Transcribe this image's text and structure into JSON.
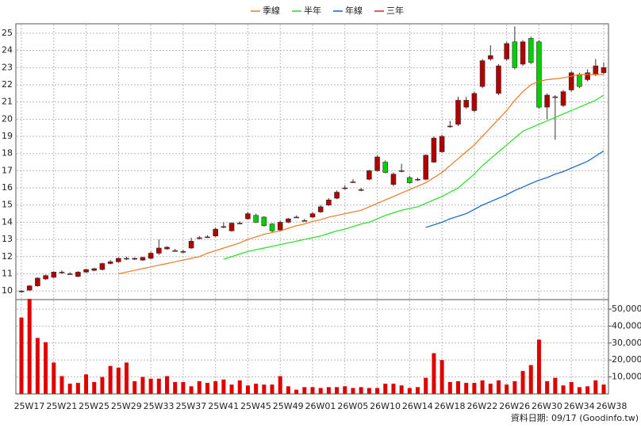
{
  "chart_data": [
    {
      "type": "candlestick",
      "categories": [
        "25W17",
        null,
        null,
        null,
        "25W21",
        null,
        null,
        null,
        "25W25",
        null,
        null,
        null,
        "25W29",
        null,
        null,
        null,
        "25W33",
        null,
        null,
        null,
        "25W37",
        null,
        null,
        null,
        "25W41",
        null,
        null,
        null,
        "25W45",
        null,
        null,
        null,
        "25W49",
        null,
        null,
        null,
        "26W01",
        null,
        null,
        null,
        "26W05",
        null,
        null,
        null,
        "26W10",
        null,
        null,
        null,
        "26W14",
        null,
        null,
        null,
        "26W18",
        null,
        null,
        null,
        "26W22",
        null,
        null,
        null,
        "26W26",
        null,
        null,
        null,
        "26W30",
        null,
        null,
        null,
        "26W34",
        null,
        null,
        null,
        "26W38"
      ],
      "open": [
        9.95,
        10.05,
        10.3,
        10.7,
        10.8,
        11.1,
        11.0,
        10.85,
        11.1,
        11.2,
        11.25,
        11.6,
        11.7,
        11.9,
        11.85,
        11.8,
        11.9,
        12.2,
        12.45,
        12.35,
        12.3,
        12.5,
        13.05,
        13.15,
        13.2,
        13.75,
        13.5,
        13.95,
        14.2,
        14.4,
        14.3,
        13.9,
        13.55,
        14.0,
        14.3,
        14.1,
        14.3,
        14.6,
        15.0,
        15.4,
        16.0,
        16.35,
        15.9,
        16.5,
        17.0,
        17.5,
        16.2,
        17.0,
        16.6,
        16.5,
        16.5,
        17.5,
        18.1,
        19.6,
        19.7,
        20.7,
        20.5,
        21.9,
        23.5,
        21.5,
        23.5,
        24.5,
        23.2,
        24.7,
        24.5,
        20.7,
        21.3,
        20.8,
        21.7,
        22.6,
        22.3,
        22.6,
        22.7
      ],
      "high": [
        10.05,
        10.35,
        10.8,
        10.95,
        11.15,
        11.2,
        11.1,
        11.15,
        11.3,
        11.35,
        11.65,
        11.8,
        11.95,
        12.0,
        11.95,
        12.0,
        12.3,
        13.0,
        12.6,
        12.45,
        12.4,
        13.1,
        13.2,
        13.25,
        13.7,
        14.0,
        14.0,
        14.05,
        14.6,
        14.5,
        14.35,
        13.95,
        14.1,
        14.25,
        14.4,
        14.2,
        14.6,
        15.0,
        15.4,
        15.85,
        16.15,
        16.5,
        16.0,
        17.05,
        17.9,
        17.6,
        16.9,
        17.4,
        16.7,
        16.6,
        17.95,
        19.0,
        19.1,
        19.9,
        21.3,
        21.3,
        21.6,
        23.5,
        24.3,
        23.2,
        24.5,
        25.4,
        24.6,
        24.8,
        24.6,
        21.5,
        21.4,
        21.7,
        22.8,
        22.7,
        22.9,
        23.5,
        23.3
      ],
      "low": [
        9.9,
        10.0,
        10.25,
        10.65,
        10.75,
        11.0,
        10.95,
        10.8,
        11.05,
        11.15,
        11.2,
        11.55,
        11.65,
        11.8,
        11.8,
        11.75,
        11.85,
        12.1,
        12.4,
        12.3,
        12.2,
        12.45,
        13.0,
        13.1,
        13.15,
        13.65,
        13.45,
        13.9,
        14.15,
        13.95,
        13.75,
        13.4,
        13.5,
        13.95,
        14.25,
        14.05,
        14.25,
        14.55,
        14.95,
        15.35,
        15.9,
        16.3,
        15.8,
        16.45,
        16.95,
        16.85,
        16.1,
        16.9,
        16.25,
        16.4,
        16.45,
        17.45,
        18.05,
        19.5,
        19.6,
        20.6,
        20.4,
        21.8,
        23.4,
        21.4,
        23.4,
        22.9,
        23.1,
        23.2,
        20.6,
        20.0,
        18.8,
        20.7,
        21.6,
        21.8,
        22.2,
        22.5,
        22.6
      ],
      "close": [
        10.0,
        10.3,
        10.75,
        10.9,
        11.1,
        11.1,
        11.0,
        11.1,
        11.25,
        11.3,
        11.6,
        11.7,
        11.9,
        11.9,
        11.9,
        11.95,
        12.2,
        12.5,
        12.55,
        12.35,
        12.3,
        12.9,
        13.1,
        13.15,
        13.6,
        13.75,
        13.95,
        13.95,
        14.5,
        14.0,
        13.8,
        13.5,
        14.0,
        14.2,
        14.3,
        14.1,
        14.5,
        14.9,
        15.3,
        15.75,
        16.0,
        16.35,
        15.9,
        17.0,
        17.8,
        16.9,
        16.8,
        17.0,
        16.3,
        16.5,
        17.9,
        18.9,
        19.0,
        19.6,
        21.1,
        21.1,
        21.5,
        23.4,
        23.7,
        23.1,
        24.4,
        23.0,
        24.5,
        23.3,
        20.7,
        21.4,
        21.3,
        21.6,
        22.7,
        21.9,
        22.7,
        23.1,
        23.0
      ],
      "up_color": "#b00000",
      "down_color": "#00d000",
      "series": [
        {
          "name": "季線",
          "color": "#f07820",
          "values": [
            null,
            null,
            null,
            null,
            null,
            null,
            null,
            null,
            null,
            null,
            null,
            null,
            11.0,
            11.1,
            11.2,
            11.3,
            11.4,
            11.5,
            11.6,
            11.7,
            11.8,
            11.9,
            12.0,
            12.2,
            12.35,
            12.5,
            12.65,
            12.8,
            13.0,
            13.15,
            13.3,
            13.4,
            13.5,
            13.65,
            13.8,
            13.9,
            14.05,
            14.15,
            14.3,
            14.4,
            14.5,
            14.6,
            14.7,
            14.9,
            15.1,
            15.3,
            15.5,
            15.7,
            15.9,
            16.1,
            16.3,
            16.6,
            16.9,
            17.3,
            17.7,
            18.1,
            18.5,
            19.0,
            19.5,
            20.0,
            20.5,
            21.1,
            21.6,
            22.0,
            22.2,
            22.3,
            22.35,
            22.4,
            22.5,
            22.6,
            22.6,
            22.6,
            22.6
          ]
        },
        {
          "name": "半年",
          "color": "#20e020",
          "values": [
            null,
            null,
            null,
            null,
            null,
            null,
            null,
            null,
            null,
            null,
            null,
            null,
            null,
            null,
            null,
            null,
            null,
            null,
            null,
            null,
            null,
            null,
            null,
            null,
            null,
            11.85,
            12.0,
            12.15,
            12.3,
            12.4,
            12.5,
            12.6,
            12.7,
            12.8,
            12.9,
            13.0,
            13.1,
            13.2,
            13.35,
            13.5,
            13.6,
            13.75,
            13.9,
            14.0,
            14.2,
            14.4,
            14.55,
            14.7,
            14.8,
            14.9,
            15.1,
            15.3,
            15.5,
            15.75,
            16.0,
            16.4,
            16.8,
            17.3,
            17.7,
            18.1,
            18.5,
            18.9,
            19.3,
            19.5,
            19.7,
            19.9,
            20.1,
            20.3,
            20.5,
            20.7,
            20.9,
            21.1,
            21.4
          ]
        },
        {
          "name": "年線",
          "color": "#1060d0",
          "values": [
            null,
            null,
            null,
            null,
            null,
            null,
            null,
            null,
            null,
            null,
            null,
            null,
            null,
            null,
            null,
            null,
            null,
            null,
            null,
            null,
            null,
            null,
            null,
            null,
            null,
            null,
            null,
            null,
            null,
            null,
            null,
            null,
            null,
            null,
            null,
            null,
            null,
            null,
            null,
            null,
            null,
            null,
            null,
            null,
            null,
            null,
            null,
            null,
            null,
            null,
            13.7,
            13.85,
            14.0,
            14.2,
            14.35,
            14.5,
            14.75,
            15.0,
            15.2,
            15.4,
            15.6,
            15.85,
            16.05,
            16.25,
            16.45,
            16.6,
            16.8,
            16.95,
            17.15,
            17.35,
            17.55,
            17.85,
            18.15
          ]
        },
        {
          "name": "三年",
          "color": "#e02020"
        }
      ],
      "ylim": [
        9.5,
        25.55
      ],
      "yticks": [
        10,
        11,
        12,
        13,
        14,
        15,
        16,
        17,
        18,
        19,
        20,
        21,
        22,
        23,
        24,
        25
      ],
      "grid": true,
      "source": "資料日期: 09/17 (Goodinfo.tw)"
    },
    {
      "type": "bar",
      "color": "#e00000",
      "values": [
        45000,
        56000,
        33000,
        30500,
        18500,
        10500,
        6000,
        6500,
        11500,
        7000,
        10000,
        16500,
        15500,
        18500,
        7500,
        10000,
        9000,
        9000,
        10500,
        7000,
        7000,
        4500,
        7500,
        6500,
        7500,
        8500,
        5500,
        8000,
        5000,
        6000,
        5500,
        5500,
        10500,
        4500,
        2500,
        4000,
        4000,
        3500,
        4000,
        4000,
        4500,
        3500,
        4000,
        3500,
        3500,
        6000,
        6000,
        5000,
        3500,
        4000,
        9500,
        24000,
        20000,
        7000,
        7500,
        6500,
        6500,
        8000,
        6000,
        8000,
        5500,
        7500,
        13500,
        17000,
        32000,
        7500,
        9500,
        5000,
        7000,
        4000,
        4500,
        8000,
        5500
      ],
      "ylim": [
        0,
        55600
      ],
      "yticks": [
        {
          "value": 10000,
          "label": "10,000"
        },
        {
          "value": 20000,
          "label": "20,000"
        },
        {
          "value": 30000,
          "label": "30,000"
        },
        {
          "value": 40000,
          "label": "40,000"
        },
        {
          "value": 50000,
          "label": "50,000"
        }
      ],
      "grid": true
    }
  ]
}
